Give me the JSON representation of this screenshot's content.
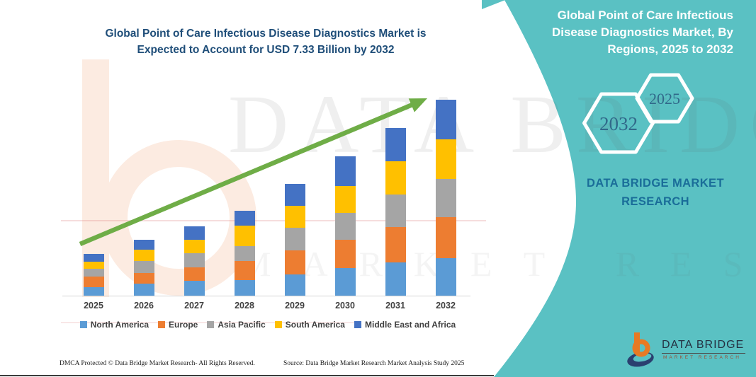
{
  "main": {
    "title_line1": "Global Point of Care Infectious Disease Diagnostics Market is",
    "title_line2": "Expected to Account for USD 7.33 Billion by 2032"
  },
  "footer": {
    "dmca": "DMCA Protected © Data Bridge Market Research-  All Rights Reserved.",
    "source": "Source: Data Bridge Market Research  Market Analysis Study 2025"
  },
  "right_panel": {
    "panel_color": "#5ac1c3",
    "title_line1": "Global Point of Care Infectious",
    "title_line2": "Disease Diagnostics Market, By",
    "title_line3": "Regions, 2025 to 2032",
    "hexagon_front_label": "2032",
    "hexagon_back_label": "2025",
    "brand_line1": "DATA BRIDGE MARKET",
    "brand_line2": "RESEARCH",
    "logo_name": "DATA BRIDGE",
    "logo_sub": "MARKET RESEARCH"
  },
  "watermark": {
    "big": "DATA BRIDGE",
    "spaced": "MARKET RESEARCH"
  },
  "chart_data": {
    "type": "bar",
    "stacked": true,
    "title": "Global Point of Care Infectious Disease Diagnostics Market is Expected to Account for USD 7.33 Billion by 2032",
    "unit": "USD Billion",
    "categories": [
      "2025",
      "2026",
      "2027",
      "2028",
      "2029",
      "2030",
      "2031",
      "2032"
    ],
    "series": [
      {
        "name": "North America",
        "color": "#5B9BD5",
        "values": [
          0.33,
          0.44,
          0.56,
          0.58,
          0.8,
          1.02,
          1.24,
          1.41
        ]
      },
      {
        "name": "Europe",
        "color": "#ED7D31",
        "values": [
          0.38,
          0.42,
          0.51,
          0.73,
          0.89,
          1.06,
          1.33,
          1.54
        ]
      },
      {
        "name": "Asia Pacific",
        "color": "#A5A5A5",
        "values": [
          0.29,
          0.44,
          0.53,
          0.55,
          0.84,
          1.01,
          1.21,
          1.41
        ]
      },
      {
        "name": "South America",
        "color": "#FFC000",
        "values": [
          0.28,
          0.41,
          0.5,
          0.75,
          0.84,
          1.01,
          1.25,
          1.48
        ]
      },
      {
        "name": "Middle East and Africa",
        "color": "#4472C4",
        "values": [
          0.28,
          0.39,
          0.5,
          0.56,
          0.8,
          1.12,
          1.25,
          1.49
        ]
      }
    ],
    "totals": [
      1.56,
      2.1,
      2.6,
      3.17,
      4.17,
      5.22,
      6.28,
      7.33
    ],
    "ylim": [
      0,
      7.33
    ],
    "grid": false,
    "legend_position": "bottom",
    "trend_arrow": true,
    "trend_arrow_color": "#6fad47"
  }
}
